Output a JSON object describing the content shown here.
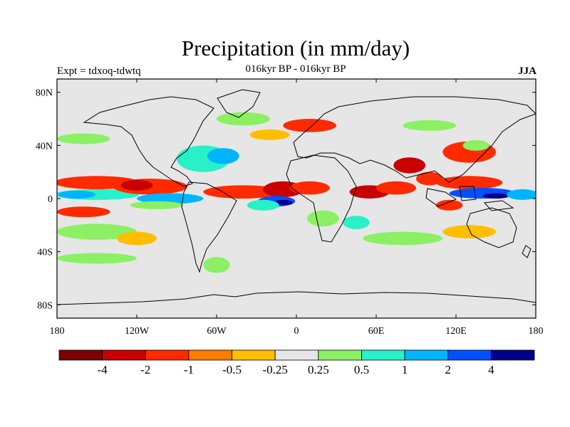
{
  "title": "Precipitation (in mm/day)",
  "subtitle_left": "Expt = tdxoq-tdwtq",
  "subtitle_center": "016kyr BP - 016kyr BP",
  "subtitle_right": "JJA",
  "chart_data": {
    "type": "heatmap",
    "projection": "cylindrical-equidistant",
    "xlim": [
      -180,
      180
    ],
    "ylim": [
      -90,
      90
    ],
    "x_ticks": [
      {
        "value": -180,
        "label": "180"
      },
      {
        "value": -120,
        "label": "120W"
      },
      {
        "value": -60,
        "label": "60W"
      },
      {
        "value": 0,
        "label": "0"
      },
      {
        "value": 60,
        "label": "60E"
      },
      {
        "value": 120,
        "label": "120E"
      },
      {
        "value": 180,
        "label": "180"
      }
    ],
    "y_ticks": [
      {
        "value": 80,
        "label": "80N"
      },
      {
        "value": 40,
        "label": "40N"
      },
      {
        "value": 0,
        "label": "0"
      },
      {
        "value": -40,
        "label": "40S"
      },
      {
        "value": -80,
        "label": "80S"
      }
    ],
    "contour_levels": [
      -4,
      -2,
      -1,
      -0.5,
      -0.25,
      0.25,
      0.5,
      1,
      2,
      4
    ],
    "colorbar_labels": [
      "-4",
      "-2",
      "-1",
      "-0.5",
      "-0.25",
      "0.25",
      "0.5",
      "1",
      "2",
      "4"
    ],
    "colors": [
      "#7d0000",
      "#c80000",
      "#ff2a00",
      "#ff7c00",
      "#ffbe00",
      "#e6e6e6",
      "#8cf064",
      "#28f0c8",
      "#00b4ff",
      "#0050ff",
      "#00008c"
    ],
    "anomaly_regions": [
      {
        "lon": -150,
        "lat": 3,
        "rlon": 32,
        "rlat": 4,
        "bin": 7
      },
      {
        "lon": -165,
        "lat": 3,
        "rlon": 14,
        "rlat": 3,
        "bin": 8
      },
      {
        "lon": -150,
        "lat": 12,
        "rlon": 32,
        "rlat": 5,
        "bin": 2
      },
      {
        "lon": -110,
        "lat": 9,
        "rlon": 28,
        "rlat": 6,
        "bin": 2
      },
      {
        "lon": -120,
        "lat": 10,
        "rlon": 12,
        "rlat": 4,
        "bin": 1
      },
      {
        "lon": -95,
        "lat": 0,
        "rlon": 25,
        "rlat": 4,
        "bin": 8
      },
      {
        "lon": -105,
        "lat": -5,
        "rlon": 20,
        "rlat": 3,
        "bin": 6
      },
      {
        "lon": -160,
        "lat": -10,
        "rlon": 20,
        "rlat": 4,
        "bin": 2
      },
      {
        "lon": -150,
        "lat": -25,
        "rlon": 30,
        "rlat": 6,
        "bin": 6
      },
      {
        "lon": -150,
        "lat": -45,
        "rlon": 30,
        "rlat": 4,
        "bin": 6
      },
      {
        "lon": -120,
        "lat": -30,
        "rlon": 15,
        "rlat": 5,
        "bin": 4
      },
      {
        "lon": -70,
        "lat": 30,
        "rlon": 20,
        "rlat": 10,
        "bin": 7
      },
      {
        "lon": -55,
        "lat": 32,
        "rlon": 12,
        "rlat": 6,
        "bin": 8
      },
      {
        "lon": -40,
        "lat": 5,
        "rlon": 30,
        "rlat": 5,
        "bin": 2
      },
      {
        "lon": -10,
        "lat": 7,
        "rlon": 15,
        "rlat": 6,
        "bin": 1
      },
      {
        "lon": 10,
        "lat": 8,
        "rlon": 15,
        "rlat": 5,
        "bin": 2
      },
      {
        "lon": -15,
        "lat": -2,
        "rlon": 14,
        "rlat": 4,
        "bin": 9
      },
      {
        "lon": -10,
        "lat": -3,
        "rlon": 7,
        "rlat": 2,
        "bin": 10
      },
      {
        "lon": -25,
        "lat": -5,
        "rlon": 12,
        "rlat": 4,
        "bin": 7
      },
      {
        "lon": 20,
        "lat": -15,
        "rlon": 12,
        "rlat": 6,
        "bin": 6
      },
      {
        "lon": 45,
        "lat": -18,
        "rlon": 10,
        "rlat": 5,
        "bin": 7
      },
      {
        "lon": 55,
        "lat": 5,
        "rlon": 15,
        "rlat": 5,
        "bin": 1
      },
      {
        "lon": 75,
        "lat": 8,
        "rlon": 15,
        "rlat": 5,
        "bin": 2
      },
      {
        "lon": 85,
        "lat": 25,
        "rlon": 12,
        "rlat": 6,
        "bin": 1
      },
      {
        "lon": 100,
        "lat": 15,
        "rlon": 10,
        "rlat": 5,
        "bin": 2
      },
      {
        "lon": 130,
        "lat": 12,
        "rlon": 25,
        "rlat": 5,
        "bin": 2
      },
      {
        "lon": 140,
        "lat": 4,
        "rlon": 25,
        "rlat": 4,
        "bin": 9
      },
      {
        "lon": 150,
        "lat": 2,
        "rlon": 10,
        "rlat": 2,
        "bin": 10
      },
      {
        "lon": 170,
        "lat": 3,
        "rlon": 12,
        "rlat": 4,
        "bin": 8
      },
      {
        "lon": 130,
        "lat": 35,
        "rlon": 20,
        "rlat": 8,
        "bin": 2
      },
      {
        "lon": 135,
        "lat": 40,
        "rlon": 10,
        "rlat": 4,
        "bin": 6
      },
      {
        "lon": 115,
        "lat": -5,
        "rlon": 10,
        "rlat": 4,
        "bin": 2
      },
      {
        "lon": 10,
        "lat": 55,
        "rlon": 20,
        "rlat": 5,
        "bin": 2
      },
      {
        "lon": -40,
        "lat": 60,
        "rlon": 20,
        "rlat": 5,
        "bin": 6
      },
      {
        "lon": -20,
        "lat": 48,
        "rlon": 15,
        "rlat": 4,
        "bin": 4
      },
      {
        "lon": -160,
        "lat": 45,
        "rlon": 20,
        "rlat": 4,
        "bin": 6
      },
      {
        "lon": 100,
        "lat": 55,
        "rlon": 20,
        "rlat": 4,
        "bin": 6
      },
      {
        "lon": -60,
        "lat": -50,
        "rlon": 10,
        "rlat": 6,
        "bin": 6
      },
      {
        "lon": 80,
        "lat": -30,
        "rlon": 30,
        "rlat": 5,
        "bin": 6
      },
      {
        "lon": 130,
        "lat": -25,
        "rlon": 20,
        "rlat": 5,
        "bin": 4
      }
    ]
  }
}
